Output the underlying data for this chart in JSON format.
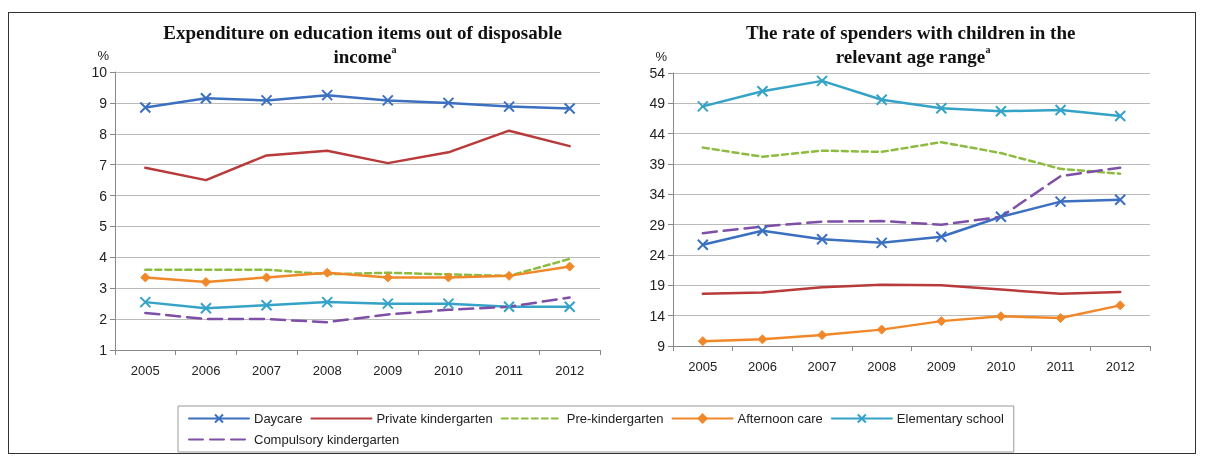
{
  "chart_data": [
    {
      "type": "line",
      "title": "Expenditure on education items out of disposable income$^{a}$",
      "ylabel": "%",
      "categories": [
        "2005",
        "2006",
        "2007",
        "2008",
        "2009",
        "2010",
        "2011",
        "2012"
      ],
      "ylim": [
        1,
        10
      ],
      "yticks": [
        1,
        2,
        3,
        4,
        5,
        6,
        7,
        8,
        9,
        10
      ],
      "grid": "y",
      "legend": "bottom",
      "series": [
        {
          "name": "Daycare",
          "color": "#3b6fc0",
          "marker": "cross",
          "values": [
            8.85,
            9.15,
            9.08,
            9.25,
            9.08,
            9.0,
            8.88,
            8.82
          ]
        },
        {
          "name": "Private kindergarten",
          "color": "#b83a3a",
          "marker": "none",
          "values": [
            6.9,
            6.5,
            7.3,
            7.45,
            7.05,
            7.4,
            8.1,
            7.6
          ]
        },
        {
          "name": "Pre-kindergarten",
          "color": "#8dbb3f",
          "marker": "none",
          "line_style": "dashed",
          "values": [
            3.6,
            3.6,
            3.6,
            3.45,
            3.5,
            3.45,
            3.4,
            3.95
          ]
        },
        {
          "name": "Afternoon care",
          "color": "#f0882a",
          "marker": "diamond",
          "values": [
            3.35,
            3.2,
            3.35,
            3.5,
            3.35,
            3.35,
            3.4,
            3.7
          ]
        },
        {
          "name": "Elementary school",
          "color": "#34a3c7",
          "marker": "cross",
          "values": [
            2.55,
            2.35,
            2.45,
            2.55,
            2.5,
            2.5,
            2.4,
            2.4
          ]
        },
        {
          "name": "Compulsory kindergarten",
          "color": "#7e4fa6",
          "marker": "none",
          "line_style": "dashed",
          "values": [
            2.2,
            2.0,
            2.0,
            1.9,
            2.15,
            2.3,
            2.4,
            2.7
          ]
        }
      ]
    },
    {
      "type": "line",
      "title": "The rate of spenders with children in the relevant age range$^{a}$",
      "ylabel": "%",
      "categories": [
        "2005",
        "2006",
        "2007",
        "2008",
        "2009",
        "2010",
        "2011",
        "2012"
      ],
      "ylim": [
        9,
        54
      ],
      "yticks": [
        9,
        14,
        19,
        24,
        29,
        34,
        39,
        44,
        49,
        54
      ],
      "grid": "y",
      "series": [
        {
          "color": "#3b6fc0",
          "marker": "cross",
          "values": [
            25.7,
            28.0,
            26.6,
            26.0,
            27.0,
            30.3,
            32.8,
            33.1
          ]
        },
        {
          "color": "#b83a3a",
          "marker": "none",
          "values": [
            17.6,
            17.8,
            18.7,
            19.1,
            19.0,
            18.3,
            17.6,
            17.9
          ]
        },
        {
          "color": "#8dbb3f",
          "marker": "none",
          "line_style": "dashed",
          "values": [
            41.7,
            40.2,
            41.2,
            41.0,
            42.6,
            40.8,
            38.2,
            37.4
          ]
        },
        {
          "color": "#f0882a",
          "marker": "diamond",
          "values": [
            9.8,
            10.1,
            10.8,
            11.7,
            13.1,
            13.9,
            13.6,
            15.7
          ]
        },
        {
          "color": "#34a3c7",
          "marker": "cross",
          "values": [
            48.5,
            51.0,
            52.7,
            49.6,
            48.2,
            47.7,
            47.9,
            46.9
          ]
        },
        {
          "color": "#7e4fa6",
          "marker": "none",
          "line_style": "dashed",
          "values": [
            27.6,
            28.7,
            29.5,
            29.6,
            29.0,
            30.3,
            37.0,
            38.4
          ]
        }
      ]
    }
  ]
}
